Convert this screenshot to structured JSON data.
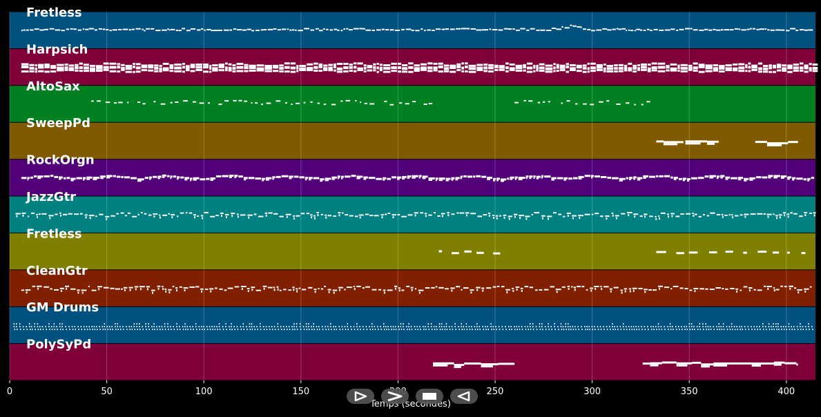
{
  "chart_data": {
    "type": "piano-roll",
    "xlabel": "Temps (secondes)",
    "xlim": [
      0,
      415
    ],
    "x_ticks": [
      0,
      50,
      100,
      150,
      200,
      250,
      300,
      350,
      400
    ],
    "grid": true,
    "tracks": [
      {
        "name": "Fretless",
        "color": "#005080",
        "style": "line-thin",
        "segments": [
          [
            6,
            414
          ]
        ],
        "peak_at": 288
      },
      {
        "name": "Harpsich",
        "color": "#80003a",
        "style": "dense",
        "segments": [
          [
            6,
            414
          ]
        ]
      },
      {
        "name": "AltoSax",
        "color": "#008020",
        "style": "sparse",
        "segments": [
          [
            42,
            218
          ],
          [
            260,
            332
          ]
        ]
      },
      {
        "name": "SweepPd",
        "color": "#805a00",
        "style": "blocks",
        "segments": [
          [
            333,
            347
          ],
          [
            348,
            365
          ],
          [
            384,
            406
          ]
        ]
      },
      {
        "name": "RockOrgn",
        "color": "#52007a",
        "style": "dense-wavy",
        "segments": [
          [
            6,
            414
          ]
        ]
      },
      {
        "name": "JazzGtr",
        "color": "#008080",
        "style": "medium",
        "segments": [
          [
            3,
            414
          ]
        ]
      },
      {
        "name": "Fretless",
        "color": "#808000",
        "style": "sparse-blocks",
        "segments": [
          [
            221,
            256
          ],
          [
            333,
            414
          ]
        ]
      },
      {
        "name": "CleanGtr",
        "color": "#802000",
        "style": "medium",
        "segments": [
          [
            6,
            414
          ]
        ]
      },
      {
        "name": "GM Drums",
        "color": "#005080",
        "style": "drums",
        "segments": [
          [
            2,
            414
          ]
        ]
      },
      {
        "name": "PolySyPd",
        "color": "#80003a",
        "style": "blocks",
        "segments": [
          [
            218,
            260
          ],
          [
            326,
            406
          ]
        ]
      }
    ]
  },
  "controls": [
    {
      "name": "play-button",
      "icon": "play-icon"
    },
    {
      "name": "forward-button",
      "icon": "chevron-right-icon"
    },
    {
      "name": "stop-button",
      "icon": "stop-icon"
    },
    {
      "name": "rewind-button",
      "icon": "rewind-icon"
    }
  ]
}
